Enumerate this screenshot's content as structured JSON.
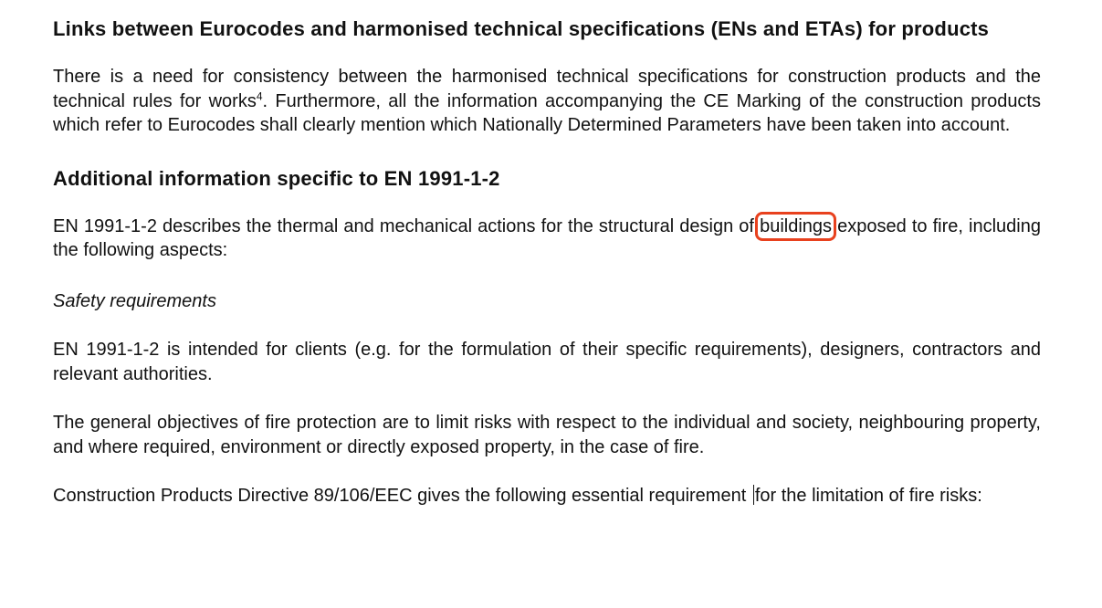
{
  "document": {
    "heading_links": "Links between Eurocodes and harmonised technical specifications (ENs and ETAs) for products",
    "para_consistency_part1": "There is a need for consistency between the harmonised technical specifications for construction products and the technical rules for works",
    "footnote_ref": "4",
    "para_consistency_part2": ". Furthermore, all the information accompanying the CE Marking of the construction products which refer to Eurocodes shall clearly mention which Nationally Determined Parameters have been taken into account.",
    "heading_additional": "Additional information specific to EN 1991-1-2",
    "para_describes_before": "EN 1991-1-2 describes the thermal and mechanical actions for the structural design of ",
    "highlighted_word": "buildings",
    "para_describes_after": " exposed to fire, including the following aspects:",
    "subheading_safety": "Safety requirements",
    "para_intended": "EN 1991-1-2 is intended for clients (e.g. for the formulation of their specific requirements), designers, contractors and relevant authorities.",
    "para_objectives": "The general objectives of fire protection are to limit risks with respect to the individual and society, neighbouring property, and where required, environment or directly exposed property, in the case of fire.",
    "para_cpd_before": "Construction Products Directive 89/106/EEC gives the following essential requirement ",
    "para_cpd_after": "for the limitation of fire risks:"
  },
  "colors": {
    "highlight_box": "#e8411e",
    "text": "#111111"
  }
}
